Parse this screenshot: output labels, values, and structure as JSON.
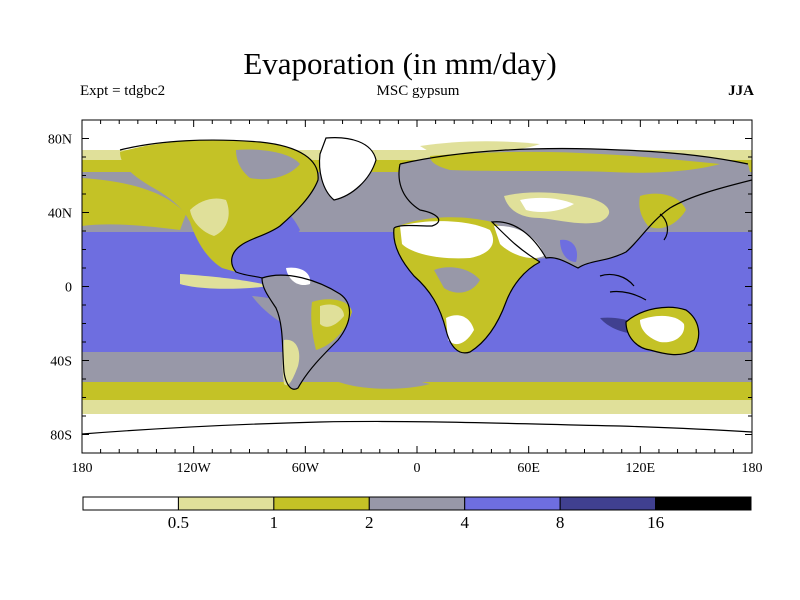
{
  "title": "Evaporation (in mm/day)",
  "experiment": "Expt = tdgbc2",
  "subtitle": "MSC gypsum",
  "season": "JJA",
  "map": {
    "lat_ticks": [
      {
        "lat": 80,
        "label": "80N"
      },
      {
        "lat": 40,
        "label": "40N"
      },
      {
        "lat": 0,
        "label": "0"
      },
      {
        "lat": -40,
        "label": "40S"
      },
      {
        "lat": -80,
        "label": "80S"
      }
    ],
    "lon_ticks": [
      {
        "lon": -180,
        "label": "180"
      },
      {
        "lon": -120,
        "label": "120W"
      },
      {
        "lon": -60,
        "label": "60W"
      },
      {
        "lon": 0,
        "label": "0"
      },
      {
        "lon": 60,
        "label": "60E"
      },
      {
        "lon": 120,
        "label": "120E"
      },
      {
        "lon": 180,
        "label": "180"
      }
    ],
    "lat_range": [
      -90,
      90
    ],
    "lon_range": [
      -180,
      180
    ]
  },
  "colorbar": {
    "colors": [
      "#ffffff",
      "#e0e09a",
      "#c4c226",
      "#9898a8",
      "#6e6ee0",
      "#404090",
      "#000000"
    ],
    "labels": [
      "0.5",
      "1",
      "2",
      "4",
      "8",
      "16"
    ]
  }
}
